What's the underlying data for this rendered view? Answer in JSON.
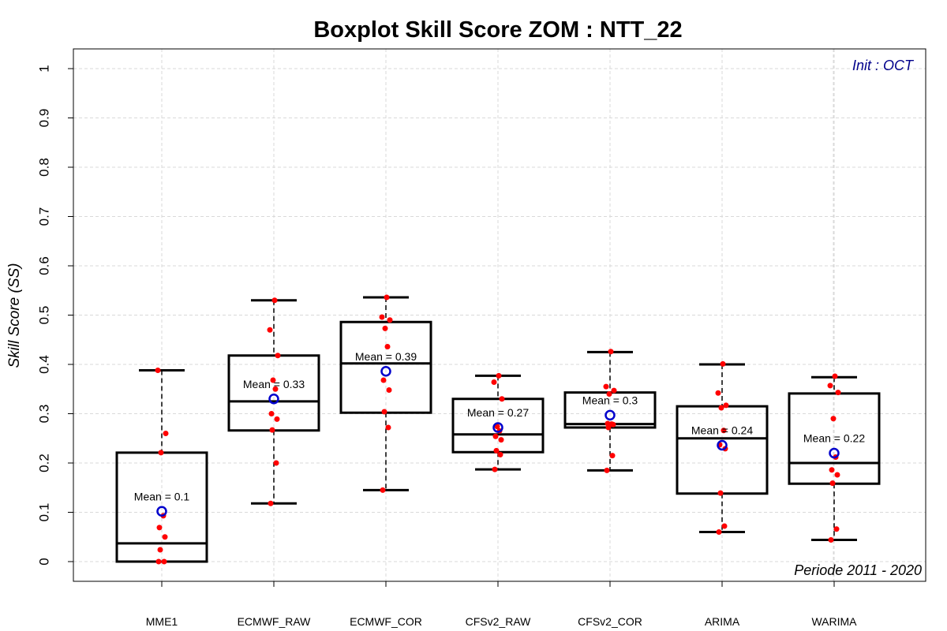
{
  "chart_data": {
    "type": "boxplot",
    "title": "Boxplot Skill Score ZOM : NTT_22",
    "ylabel": "Skill Score (SS)",
    "xlabel": "",
    "ylim": [
      0,
      1
    ],
    "yticks": [
      0,
      0.1,
      0.2,
      0.3,
      0.4,
      0.5,
      0.6,
      0.7,
      0.8,
      0.9,
      1
    ],
    "grid": true,
    "annotation_top_right": "Init : OCT",
    "annotation_bottom_right": "Periode 2011 - 2020",
    "colors": {
      "points": "#ff0000",
      "mean_marker": "#0000cc",
      "init_text": "#00008b",
      "grid": "#d9d9d9"
    },
    "categories": [
      "MME1",
      "ECMWF_RAW",
      "ECMWF_COR",
      "CFSv2_RAW",
      "CFSv2_COR",
      "ARIMA",
      "WARIMA"
    ],
    "boxes": [
      {
        "name": "MME1",
        "min": 0.0,
        "q1": 0.0,
        "median": 0.037,
        "q3": 0.221,
        "max": 0.388,
        "mean": 0.102,
        "mean_label": "Mean = 0.1",
        "points": [
          0.0,
          0.0,
          0.024,
          0.05,
          0.069,
          0.093,
          0.221,
          0.26,
          0.388
        ]
      },
      {
        "name": "ECMWF_RAW",
        "min": 0.118,
        "q1": 0.266,
        "median": 0.325,
        "q3": 0.418,
        "max": 0.53,
        "mean": 0.33,
        "mean_label": "Mean = 0.33",
        "points": [
          0.118,
          0.2,
          0.267,
          0.289,
          0.3,
          0.35,
          0.368,
          0.418,
          0.47,
          0.53
        ]
      },
      {
        "name": "ECMWF_COR",
        "min": 0.145,
        "q1": 0.302,
        "median": 0.402,
        "q3": 0.486,
        "max": 0.536,
        "mean": 0.386,
        "mean_label": "Mean = 0.39",
        "points": [
          0.145,
          0.272,
          0.304,
          0.348,
          0.368,
          0.436,
          0.473,
          0.49,
          0.496,
          0.536
        ]
      },
      {
        "name": "CFSv2_RAW",
        "min": 0.187,
        "q1": 0.222,
        "median": 0.258,
        "q3": 0.33,
        "max": 0.377,
        "mean": 0.272,
        "mean_label": "Mean = 0.27",
        "points": [
          0.187,
          0.217,
          0.225,
          0.247,
          0.254,
          0.265,
          0.274,
          0.33,
          0.364,
          0.377
        ]
      },
      {
        "name": "CFSv2_COR",
        "min": 0.185,
        "q1": 0.272,
        "median": 0.279,
        "q3": 0.343,
        "max": 0.425,
        "mean": 0.297,
        "mean_label": "Mean = 0.3",
        "points": [
          0.185,
          0.215,
          0.272,
          0.278,
          0.28,
          0.279,
          0.34,
          0.347,
          0.355,
          0.426
        ]
      },
      {
        "name": "ARIMA",
        "min": 0.06,
        "q1": 0.138,
        "median": 0.25,
        "q3": 0.315,
        "max": 0.4,
        "mean": 0.236,
        "mean_label": "Mean = 0.24",
        "points": [
          0.06,
          0.072,
          0.139,
          0.229,
          0.237,
          0.266,
          0.312,
          0.317,
          0.342,
          0.401
        ]
      },
      {
        "name": "WARIMA",
        "min": 0.044,
        "q1": 0.158,
        "median": 0.2,
        "q3": 0.341,
        "max": 0.374,
        "mean": 0.22,
        "mean_label": "Mean = 0.22",
        "points": [
          0.044,
          0.066,
          0.159,
          0.176,
          0.186,
          0.212,
          0.29,
          0.343,
          0.357,
          0.376
        ]
      }
    ]
  }
}
